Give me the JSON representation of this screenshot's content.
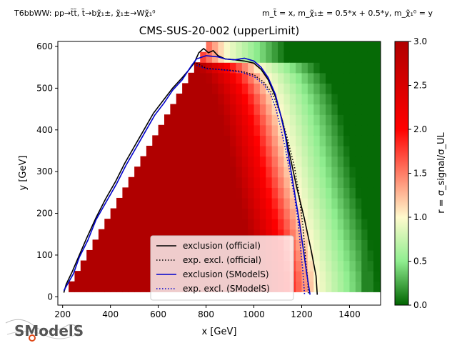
{
  "header": {
    "left_caption": "T6bbWW: pp→t̃t̃, t̃→bχ̃₁±, χ̃₁±→Wχ̃₁⁰",
    "right_caption": "m_t̃ = x, m_χ̃₁± = 0.5*x + 0.5*y, m_χ̃₁⁰ = y"
  },
  "logo": {
    "text": "SModelS"
  },
  "chart_data": {
    "type": "heatmap",
    "title": "CMS-SUS-20-002 (upperLimit)",
    "xlabel": "x [GeV]",
    "ylabel": "y [GeV]",
    "xlim": [
      180,
      1530
    ],
    "ylim": [
      -20,
      612
    ],
    "x_ticks": [
      200,
      400,
      600,
      800,
      1000,
      1200,
      1400
    ],
    "y_ticks": [
      0,
      100,
      200,
      300,
      400,
      500,
      600
    ],
    "colorbar": {
      "label": "r = σ_signal/σ_UL",
      "range": [
        0,
        3
      ],
      "ticks": [
        0.0,
        0.5,
        1.0,
        1.5,
        2.0,
        2.5,
        3.0
      ],
      "colormap_stops": [
        "#006400",
        "#90ee90",
        "#fffacd",
        "#ff0000",
        "#b00000"
      ]
    },
    "grid": {
      "x_start": 200,
      "x_end": 1530,
      "x_step": 25,
      "y_start": 12,
      "y_end": 612,
      "y_step": 25,
      "r_description_points": [
        {
          "x": 500,
          "y": 200,
          "r": 3.0
        },
        {
          "x": 1000,
          "y": 300,
          "r": 2.2
        },
        {
          "x": 1150,
          "y": 300,
          "r": 1.6
        },
        {
          "x": 1250,
          "y": 300,
          "r": 1.1
        },
        {
          "x": 1350,
          "y": 300,
          "r": 0.6
        },
        {
          "x": 1500,
          "y": 300,
          "r": 0.1
        }
      ]
    },
    "series": [
      {
        "name": "exclusion (official)",
        "color": "#000000",
        "style": "solid",
        "points": [
          [
            205,
            10
          ],
          [
            215,
            30
          ],
          [
            240,
            60
          ],
          [
            270,
            100
          ],
          [
            300,
            140
          ],
          [
            340,
            190
          ],
          [
            380,
            235
          ],
          [
            420,
            275
          ],
          [
            460,
            320
          ],
          [
            500,
            360
          ],
          [
            540,
            400
          ],
          [
            580,
            440
          ],
          [
            620,
            470
          ],
          [
            660,
            500
          ],
          [
            700,
            525
          ],
          [
            730,
            545
          ],
          [
            750,
            560
          ],
          [
            770,
            585
          ],
          [
            790,
            595
          ],
          [
            810,
            585
          ],
          [
            830,
            590
          ],
          [
            850,
            578
          ],
          [
            880,
            570
          ],
          [
            920,
            568
          ],
          [
            960,
            565
          ],
          [
            1000,
            560
          ],
          [
            1030,
            545
          ],
          [
            1060,
            520
          ],
          [
            1090,
            480
          ],
          [
            1120,
            420
          ],
          [
            1150,
            340
          ],
          [
            1180,
            260
          ],
          [
            1210,
            190
          ],
          [
            1240,
            110
          ],
          [
            1260,
            50
          ],
          [
            1265,
            5
          ]
        ]
      },
      {
        "name": "exp. excl. (official)",
        "color": "#000000",
        "style": "dotted",
        "points": [
          [
            760,
            560
          ],
          [
            800,
            548
          ],
          [
            850,
            545
          ],
          [
            900,
            543
          ],
          [
            950,
            540
          ],
          [
            1000,
            532
          ],
          [
            1040,
            515
          ],
          [
            1080,
            485
          ],
          [
            1110,
            440
          ],
          [
            1140,
            380
          ],
          [
            1170,
            310
          ],
          [
            1190,
            240
          ],
          [
            1205,
            170
          ],
          [
            1215,
            100
          ],
          [
            1225,
            40
          ],
          [
            1228,
            5
          ]
        ]
      },
      {
        "name": "exclusion (SModelS)",
        "color": "#0000cc",
        "style": "solid",
        "points": [
          [
            205,
            15
          ],
          [
            220,
            30
          ],
          [
            245,
            55
          ],
          [
            270,
            95
          ],
          [
            305,
            135
          ],
          [
            340,
            185
          ],
          [
            385,
            230
          ],
          [
            425,
            270
          ],
          [
            465,
            315
          ],
          [
            505,
            355
          ],
          [
            545,
            395
          ],
          [
            585,
            435
          ],
          [
            625,
            465
          ],
          [
            660,
            495
          ],
          [
            700,
            520
          ],
          [
            740,
            555
          ],
          [
            760,
            570
          ],
          [
            800,
            578
          ],
          [
            850,
            575
          ],
          [
            880,
            570
          ],
          [
            920,
            568
          ],
          [
            960,
            572
          ],
          [
            1000,
            565
          ],
          [
            1030,
            550
          ],
          [
            1060,
            525
          ],
          [
            1090,
            485
          ],
          [
            1110,
            440
          ],
          [
            1130,
            390
          ],
          [
            1150,
            320
          ],
          [
            1170,
            250
          ],
          [
            1190,
            180
          ],
          [
            1205,
            120
          ],
          [
            1220,
            60
          ],
          [
            1235,
            5
          ]
        ]
      },
      {
        "name": "exp. excl. (SModelS)",
        "color": "#0000cc",
        "style": "dotted",
        "points": [
          [
            760,
            555
          ],
          [
            800,
            546
          ],
          [
            850,
            545
          ],
          [
            900,
            542
          ],
          [
            950,
            538
          ],
          [
            1000,
            528
          ],
          [
            1040,
            510
          ],
          [
            1070,
            485
          ],
          [
            1090,
            455
          ],
          [
            1110,
            410
          ],
          [
            1130,
            360
          ],
          [
            1150,
            300
          ],
          [
            1170,
            240
          ],
          [
            1185,
            180
          ],
          [
            1195,
            120
          ],
          [
            1205,
            60
          ],
          [
            1212,
            5
          ]
        ]
      }
    ],
    "legend": {
      "placement": "bottom-center",
      "entries": [
        "exclusion (official)",
        "exp. excl. (official)",
        "exclusion (SModelS)",
        "exp. excl. (SModelS)"
      ]
    }
  }
}
